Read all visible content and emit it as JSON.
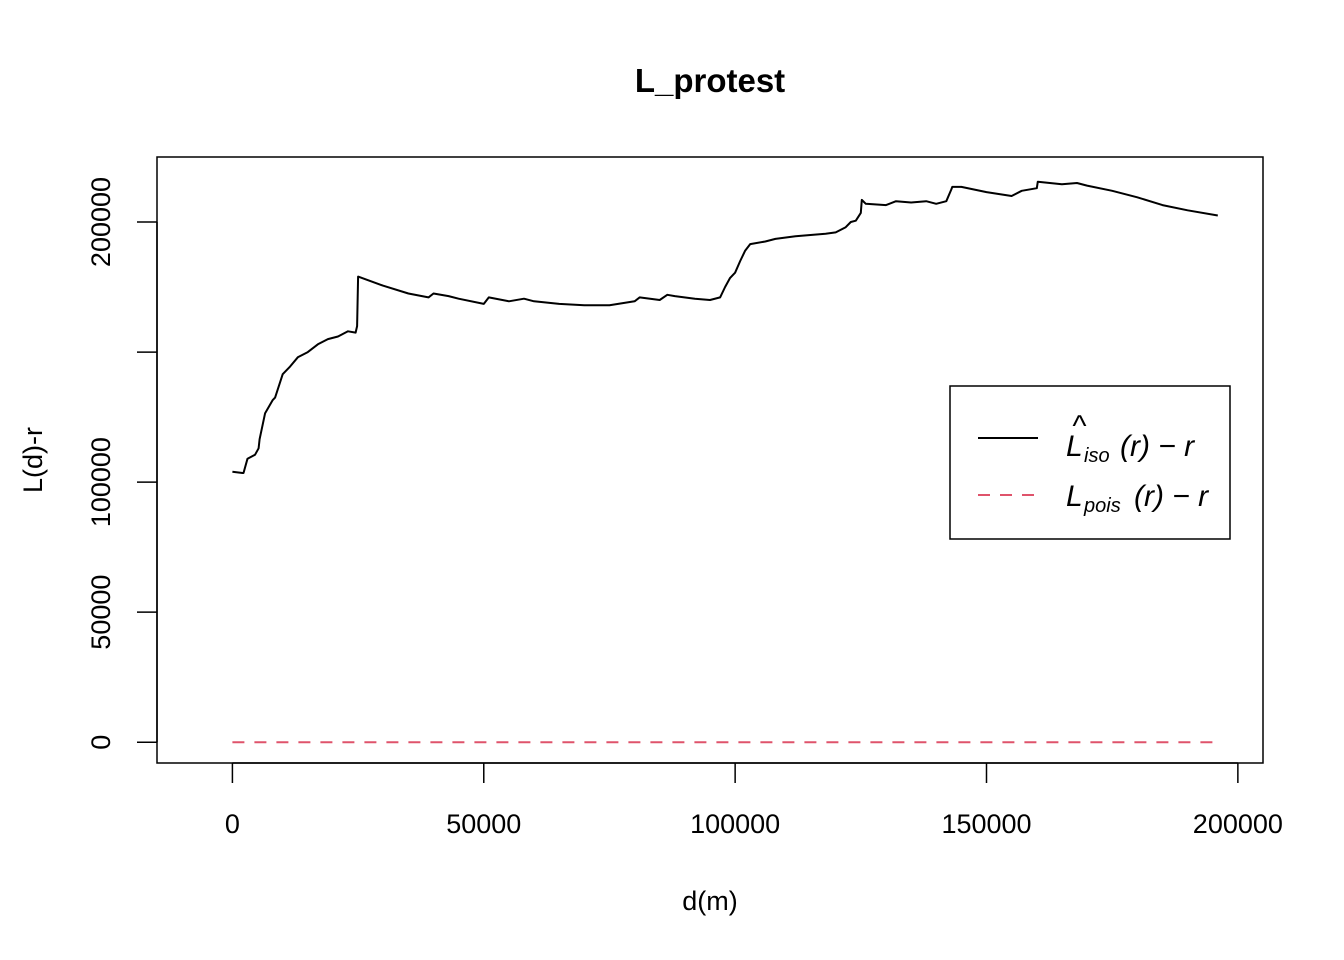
{
  "chart_data": {
    "type": "line",
    "title": "L_protest",
    "xlabel": "d(m)",
    "ylabel": "L(d)-r",
    "xlim": [
      -15000,
      205000
    ],
    "ylim": [
      -8000,
      225000
    ],
    "x_ticks": [
      0,
      50000,
      100000,
      150000,
      200000
    ],
    "x_tick_labels": [
      "0",
      "50000",
      "100000",
      "150000",
      "200000"
    ],
    "y_ticks": [
      0,
      50000,
      100000,
      150000,
      200000
    ],
    "y_tick_labels": [
      "0",
      "50000",
      "100000",
      "",
      "200000"
    ],
    "legend_position": "right",
    "grid": false,
    "series": [
      {
        "key": "iso",
        "legend_main": "L",
        "legend_hat": "^",
        "legend_sub": "iso",
        "legend_rest": "(r) − r",
        "color": "#000000",
        "dash": "solid",
        "x": [
          0,
          2000,
          2200,
          3000,
          4500,
          5200,
          5400,
          6500,
          8000,
          8500,
          10000,
          11500,
          13000,
          15000,
          17000,
          19000,
          21000,
          23000,
          24500,
          24800,
          25000,
          30000,
          35000,
          39000,
          40000,
          43000,
          45000,
          50000,
          51000,
          55000,
          58000,
          60000,
          65000,
          70000,
          75000,
          80000,
          81000,
          85000,
          86500,
          88000,
          92000,
          95000,
          97000,
          98000,
          99000,
          100000,
          101000,
          102000,
          103000,
          106000,
          108000,
          112000,
          115000,
          118000,
          120000,
          122000,
          123000,
          124000,
          125000,
          125200,
          126000,
          130000,
          132000,
          135000,
          138000,
          140000,
          142000,
          143000,
          143200,
          145000,
          150000,
          155000,
          157000,
          160000,
          160200,
          165000,
          168000,
          170000,
          175000,
          180000,
          185000,
          190000,
          196000
        ],
        "y": [
          104000,
          103500,
          103500,
          109000,
          110500,
          113000,
          116500,
          126500,
          131500,
          132500,
          141500,
          144500,
          148000,
          150000,
          153000,
          155000,
          156000,
          158000,
          157500,
          160000,
          179000,
          175500,
          172500,
          171000,
          172500,
          171500,
          170500,
          168500,
          171000,
          169500,
          170500,
          169500,
          168500,
          168000,
          168000,
          169500,
          171000,
          170000,
          172000,
          171500,
          170500,
          170000,
          171000,
          175000,
          178500,
          180500,
          185000,
          189000,
          191500,
          192500,
          193500,
          194500,
          195000,
          195500,
          196000,
          198000,
          200000,
          200500,
          203500,
          208500,
          207000,
          206500,
          208000,
          207500,
          208000,
          207000,
          208000,
          212500,
          213500,
          213500,
          211500,
          210000,
          212000,
          213000,
          215500,
          214500,
          215000,
          214000,
          212000,
          209500,
          206500,
          204500,
          202500
        ]
      },
      {
        "key": "pois",
        "legend_main": "L",
        "legend_sub": "pois",
        "legend_rest": "(r) − r",
        "color": "#DF536B",
        "dash": "dashed",
        "x": [
          0,
          196000
        ],
        "y": [
          0,
          0
        ]
      }
    ]
  }
}
